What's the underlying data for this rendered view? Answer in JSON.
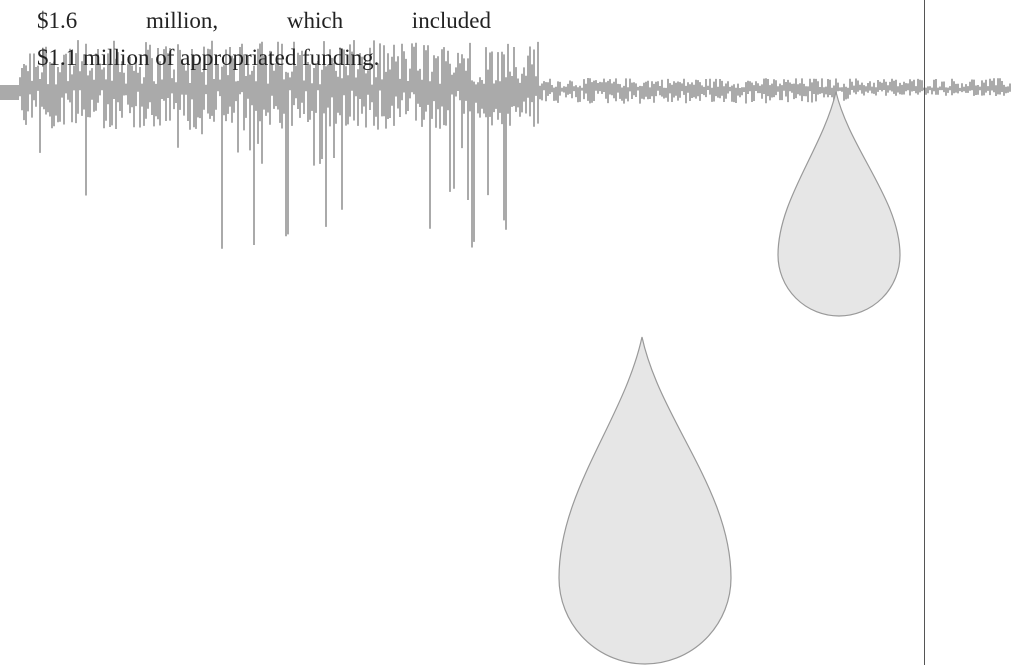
{
  "text": {
    "lines": [
      "$1.6 million, which included",
      "$1.1 million of appropriated funding."
    ]
  }
}
